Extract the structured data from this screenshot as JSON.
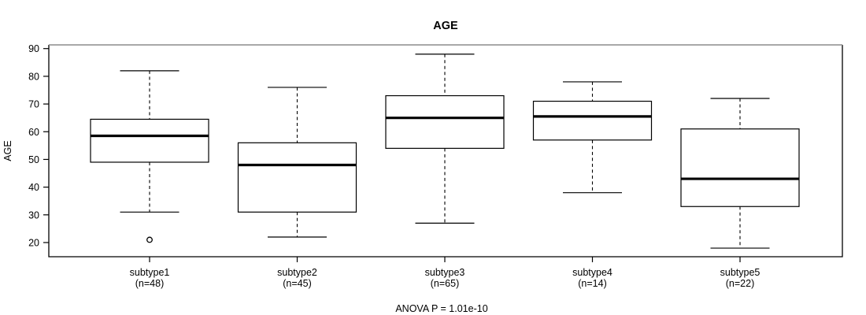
{
  "colors": {
    "foreground": "#000000",
    "background": "#ffffff",
    "box_fill": "#ffffff",
    "frame_top": "#8c8c8c"
  },
  "chart_data": {
    "type": "boxplot",
    "title": "AGE",
    "ylabel": "AGE",
    "annotation": "ANOVA P = 1.01e-10",
    "ylim": [
      20,
      90
    ],
    "yticks": [
      20,
      30,
      40,
      50,
      60,
      70,
      80,
      90
    ],
    "grid": false,
    "whisker_style": "dashed",
    "groups": [
      {
        "label": "subtype1",
        "n_label": "(n=48)",
        "low": 31,
        "q1": 49,
        "median": 58.5,
        "q3": 64.5,
        "high": 82,
        "outliers": [
          21
        ]
      },
      {
        "label": "subtype2",
        "n_label": "(n=45)",
        "low": 22,
        "q1": 31,
        "median": 48,
        "q3": 56,
        "high": 76,
        "outliers": []
      },
      {
        "label": "subtype3",
        "n_label": "(n=65)",
        "low": 27,
        "q1": 54,
        "median": 65,
        "q3": 73,
        "high": 88,
        "outliers": []
      },
      {
        "label": "subtype4",
        "n_label": "(n=14)",
        "low": 38,
        "q1": 57,
        "median": 65.5,
        "q3": 71,
        "high": 78,
        "outliers": []
      },
      {
        "label": "subtype5",
        "n_label": "(n=22)",
        "low": 18,
        "q1": 33,
        "median": 43,
        "q3": 61,
        "high": 72,
        "outliers": []
      }
    ]
  }
}
